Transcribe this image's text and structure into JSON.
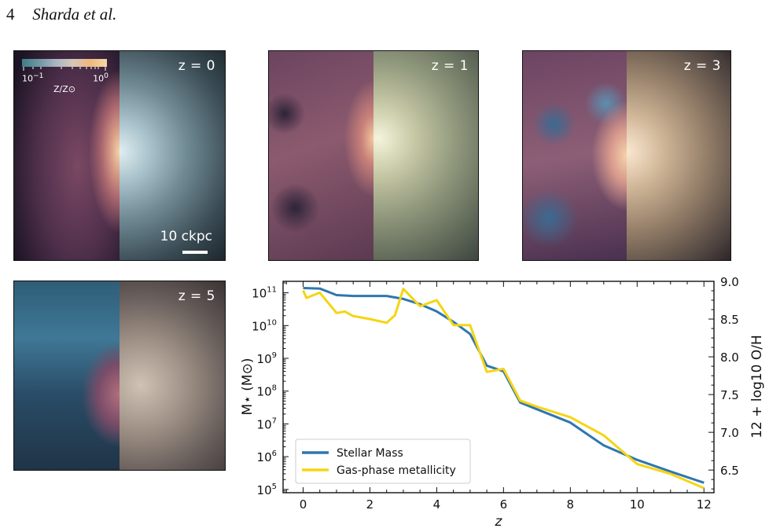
{
  "header": {
    "page_number": "4",
    "authors": "Sharda et al."
  },
  "panels": [
    {
      "id": "z0",
      "label": "z = 0",
      "scale_text": "10 ckpc"
    },
    {
      "id": "z1",
      "label": "z = 1"
    },
    {
      "id": "z3",
      "label": "z = 3"
    },
    {
      "id": "z5",
      "label": "z = 5"
    }
  ],
  "colorbar": {
    "low_label": "10",
    "low_exp": "−1",
    "high_label": "10",
    "high_exp": "0",
    "title": "Z/Z⊙"
  },
  "colors": {
    "stellar": "#2e77b0",
    "gas": "#f5d514"
  },
  "chart_data": {
    "type": "line",
    "xlabel": "z",
    "ylabel_left": "M⋆ (M⊙)",
    "ylabel_right": "12 + log10 O/H",
    "xlim": [
      -0.6,
      12.3
    ],
    "ylim_left_log10": [
      4.9,
      11.35
    ],
    "ylim_right": [
      6.2,
      9.0
    ],
    "x_ticks": [
      0,
      2,
      4,
      6,
      8,
      10,
      12
    ],
    "y_left_ticks_log10": [
      5,
      6,
      7,
      8,
      9,
      10,
      11
    ],
    "y_right_ticks": [
      6.5,
      7.0,
      7.5,
      8.0,
      8.5,
      9.0
    ],
    "legend": {
      "position": "lower-left",
      "entries": [
        "Stellar Mass",
        "Gas-phase metallicity"
      ]
    },
    "series": [
      {
        "name": "Stellar Mass",
        "axis": "left",
        "x": [
          0,
          0.5,
          1,
          1.5,
          2,
          2.5,
          3,
          3.5,
          4,
          4.5,
          5,
          5.5,
          6,
          6.5,
          7,
          8,
          9,
          10,
          11,
          12
        ],
        "y": [
          140000000000.0,
          135000000000.0,
          85000000000.0,
          80000000000.0,
          80000000000.0,
          80000000000.0,
          65000000000.0,
          45000000000.0,
          27000000000.0,
          13000000000.0,
          5500000000.0,
          600000000.0,
          400000000.0,
          45000000.0,
          28000000.0,
          11000000.0,
          2200000.0,
          800000.0,
          350000.0,
          160000.0
        ]
      },
      {
        "name": "Gas-phase metallicity",
        "axis": "right",
        "x": [
          0,
          0.1,
          0.5,
          1,
          1.25,
          1.5,
          2,
          2.5,
          2.75,
          3,
          3.5,
          4,
          4.5,
          5,
          5.5,
          6,
          6.5,
          7,
          8,
          9,
          10,
          11,
          12
        ],
        "y": [
          8.88,
          8.78,
          8.85,
          8.58,
          8.6,
          8.54,
          8.5,
          8.45,
          8.55,
          8.9,
          8.67,
          8.75,
          8.42,
          8.42,
          7.8,
          7.84,
          7.42,
          7.34,
          7.2,
          6.96,
          6.58,
          6.45,
          6.26
        ]
      }
    ]
  }
}
